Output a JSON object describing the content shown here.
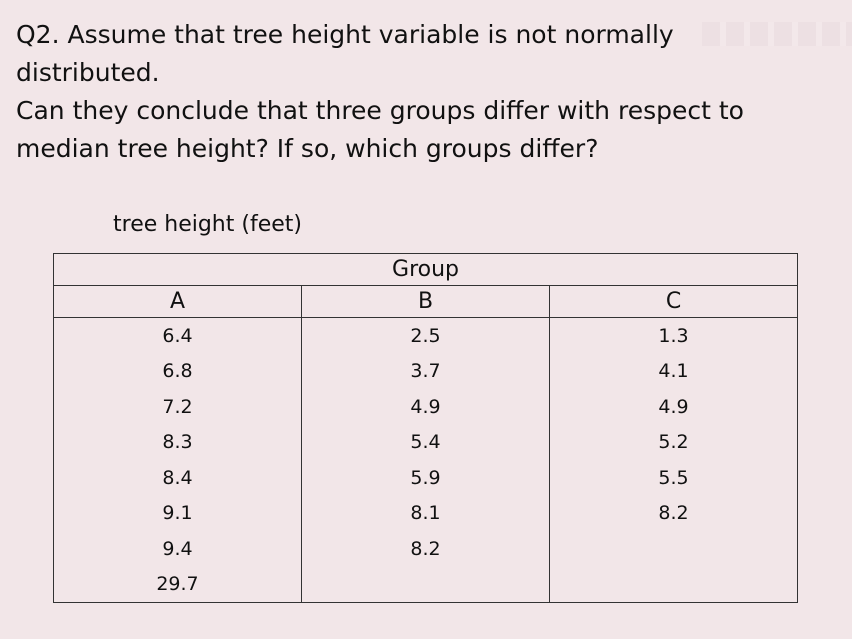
{
  "question": {
    "line1": "Q2. Assume that tree height variable is not normally distributed.",
    "line2": "Can they conclude that three groups differ with respect to median tree height? If so, which groups differ?"
  },
  "table": {
    "caption": "tree height (feet)",
    "group_header": "Group",
    "columns": [
      "A",
      "B",
      "C"
    ],
    "rows": [
      [
        "6.4",
        "2.5",
        "1.3"
      ],
      [
        "6.8",
        "3.7",
        "4.1"
      ],
      [
        "7.2",
        "4.9",
        "4.9"
      ],
      [
        "8.3",
        "5.4",
        "5.2"
      ],
      [
        "8.4",
        "5.9",
        "5.5"
      ],
      [
        "9.1",
        "8.1",
        "8.2"
      ],
      [
        "9.4",
        "8.2",
        ""
      ],
      [
        "29.7",
        "",
        ""
      ]
    ]
  }
}
